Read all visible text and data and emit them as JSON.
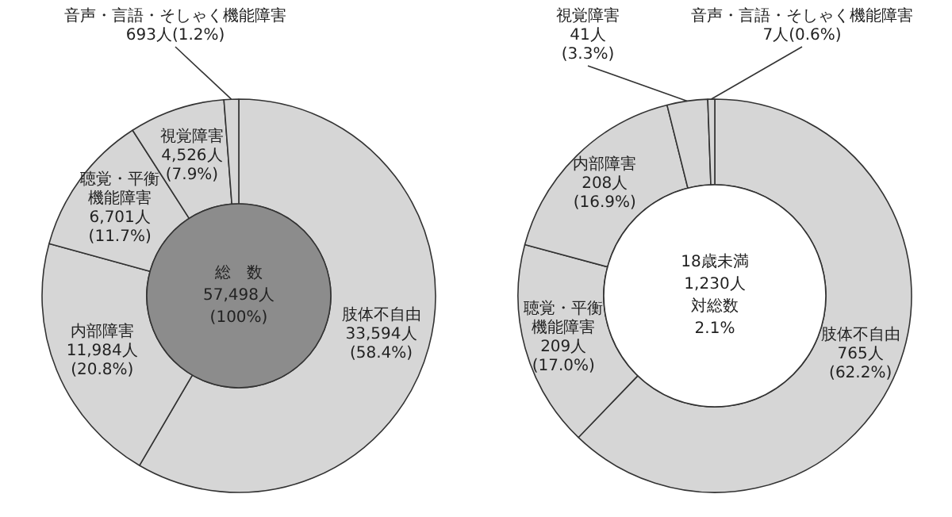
{
  "chart_data": [
    {
      "type": "donut",
      "categories": [
        "肢体不自由",
        "内部障害",
        "聴覚・平衡機能障害",
        "視覚障害",
        "音声・言語・そしゃく機能障害"
      ],
      "values": [
        33594,
        11984,
        6701,
        4526,
        693
      ],
      "value_labels": [
        "33,594人\n(58.4%)",
        "11,984人\n(20.8%)",
        "6,701人\n(11.7%)",
        "4,526人\n(7.9%)",
        "693人(1.2%)"
      ],
      "colors": [
        "#d6d6d6",
        "#d6d6d6",
        "#d6d6d6",
        "#d6d6d6",
        "#d6d6d6"
      ],
      "annotations": [
        "総　数",
        "57,498人",
        "(100%)"
      ]
    },
    {
      "type": "donut",
      "categories": [
        "肢体不自由",
        "聴覚・平衡機能障害",
        "内部障害",
        "視覚障害",
        "音声・言語・そしゃく機能障害"
      ],
      "values": [
        765,
        209,
        208,
        41,
        7
      ],
      "value_labels": [
        "765人\n(62.2%)",
        "209人\n(17.0%)",
        "208人\n(16.9%)",
        "41人\n(3.3%)",
        "7人(0.6%)"
      ],
      "colors": [
        "#d6d6d6",
        "#d6d6d6",
        "#d6d6d6",
        "#d6d6d6",
        "#d6d6d6"
      ],
      "annotations": [
        "18歳未満",
        "1,230人",
        "対総数",
        "2.1%"
      ]
    }
  ]
}
